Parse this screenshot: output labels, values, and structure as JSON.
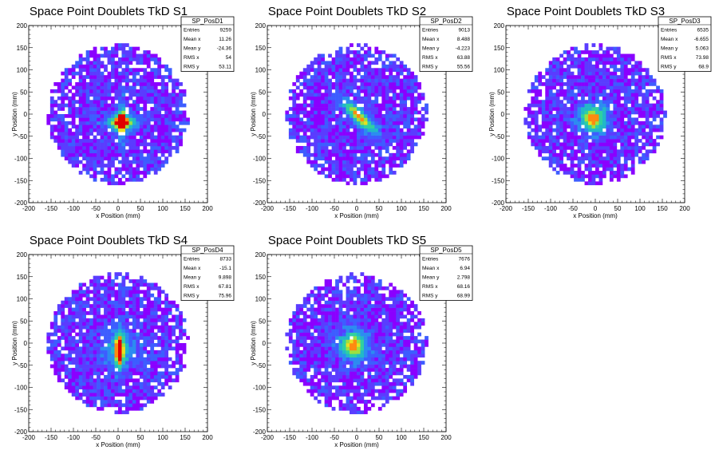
{
  "chart_data": [
    {
      "type": "heatmap",
      "title": "Space Point Doublets TkD S1",
      "xlabel": "x Position (mm)",
      "ylabel": "y Position (mm)",
      "xlim": [
        -200,
        200
      ],
      "ylim": [
        -200,
        200
      ],
      "xticks": [
        -200,
        -150,
        -100,
        -50,
        0,
        50,
        100,
        150,
        200
      ],
      "yticks": [
        -200,
        -150,
        -100,
        -50,
        0,
        50,
        100,
        150,
        200
      ],
      "stats": {
        "name": "SP_PosD1",
        "rows": [
          {
            "label": "Entries",
            "value": "9259"
          },
          {
            "label": "Mean x",
            "value": "11.26"
          },
          {
            "label": "Mean y",
            "value": "-24.36"
          },
          {
            "label": "RMS x",
            "value": "54"
          },
          {
            "label": "RMS y",
            "value": "53.11"
          }
        ]
      },
      "hotspot": {
        "x": 8,
        "y": -18
      },
      "pattern": "star"
    },
    {
      "type": "heatmap",
      "title": "Space Point Doublets TkD S2",
      "xlabel": "x Position (mm)",
      "ylabel": "y Position (mm)",
      "xlim": [
        -200,
        200
      ],
      "ylim": [
        -200,
        200
      ],
      "xticks": [
        -200,
        -150,
        -100,
        -50,
        0,
        50,
        100,
        150,
        200
      ],
      "yticks": [
        -200,
        -150,
        -100,
        -50,
        0,
        50,
        100,
        150,
        200
      ],
      "stats": {
        "name": "SP_PosD2",
        "rows": [
          {
            "label": "Entries",
            "value": "9013"
          },
          {
            "label": "Mean x",
            "value": "8.488"
          },
          {
            "label": "Mean y",
            "value": "-4.223"
          },
          {
            "label": "RMS x",
            "value": "63.88"
          },
          {
            "label": "RMS y",
            "value": "55.56"
          }
        ]
      },
      "hotspot": {
        "x": 5,
        "y": -5
      },
      "pattern": "diag"
    },
    {
      "type": "heatmap",
      "title": "Space Point Doublets TkD S3",
      "xlabel": "x Position (mm)",
      "ylabel": "y Position (mm)",
      "xlim": [
        -200,
        200
      ],
      "ylim": [
        -200,
        200
      ],
      "xticks": [
        -200,
        -150,
        -100,
        -50,
        0,
        50,
        100,
        150,
        200
      ],
      "yticks": [
        -200,
        -150,
        -100,
        -50,
        0,
        50,
        100,
        150,
        200
      ],
      "stats": {
        "name": "SP_PosD3",
        "rows": [
          {
            "label": "Entries",
            "value": "6535"
          },
          {
            "label": "Mean x",
            "value": "-6.655"
          },
          {
            "label": "Mean y",
            "value": "5.063"
          },
          {
            "label": "RMS x",
            "value": "73.98"
          },
          {
            "label": "RMS y",
            "value": "68.9"
          }
        ]
      },
      "hotspot": {
        "x": -5,
        "y": -10
      },
      "pattern": "blob"
    },
    {
      "type": "heatmap",
      "title": "Space Point Doublets TkD S4",
      "xlabel": "x Position (mm)",
      "ylabel": "y Position (mm)",
      "xlim": [
        -200,
        200
      ],
      "ylim": [
        -200,
        200
      ],
      "xticks": [
        -200,
        -150,
        -100,
        -50,
        0,
        50,
        100,
        150,
        200
      ],
      "yticks": [
        -200,
        -150,
        -100,
        -50,
        0,
        50,
        100,
        150,
        200
      ],
      "stats": {
        "name": "SP_PosD4",
        "rows": [
          {
            "label": "Entries",
            "value": "8733"
          },
          {
            "label": "Mean x",
            "value": "-15.1"
          },
          {
            "label": "Mean y",
            "value": "9.898"
          },
          {
            "label": "RMS x",
            "value": "67.81"
          },
          {
            "label": "RMS y",
            "value": "75.96"
          }
        ]
      },
      "hotspot": {
        "x": 3,
        "y": -15
      },
      "pattern": "vert"
    },
    {
      "type": "heatmap",
      "title": "Space Point Doublets TkD S5",
      "xlabel": "x Position (mm)",
      "ylabel": "y Position (mm)",
      "xlim": [
        -200,
        200
      ],
      "ylim": [
        -200,
        200
      ],
      "xticks": [
        -200,
        -150,
        -100,
        -50,
        0,
        50,
        100,
        150,
        200
      ],
      "yticks": [
        -200,
        -150,
        -100,
        -50,
        0,
        50,
        100,
        150,
        200
      ],
      "stats": {
        "name": "SP_PosD5",
        "rows": [
          {
            "label": "Entries",
            "value": "7676"
          },
          {
            "label": "Mean x",
            "value": "6.94"
          },
          {
            "label": "Mean y",
            "value": "2.798"
          },
          {
            "label": "RMS x",
            "value": "68.16"
          },
          {
            "label": "RMS y",
            "value": "68.99"
          }
        ]
      },
      "hotspot": {
        "x": -8,
        "y": -5
      },
      "pattern": "blob"
    }
  ],
  "colors": {
    "background": "#ffffff",
    "frame": "#000000",
    "palette": [
      "#8a00ff",
      "#5a3cff",
      "#3d5dff",
      "#2c8cf0",
      "#22b8c8",
      "#30d0a0",
      "#9ee040",
      "#e8e020",
      "#ff8a10",
      "#e00000"
    ]
  }
}
